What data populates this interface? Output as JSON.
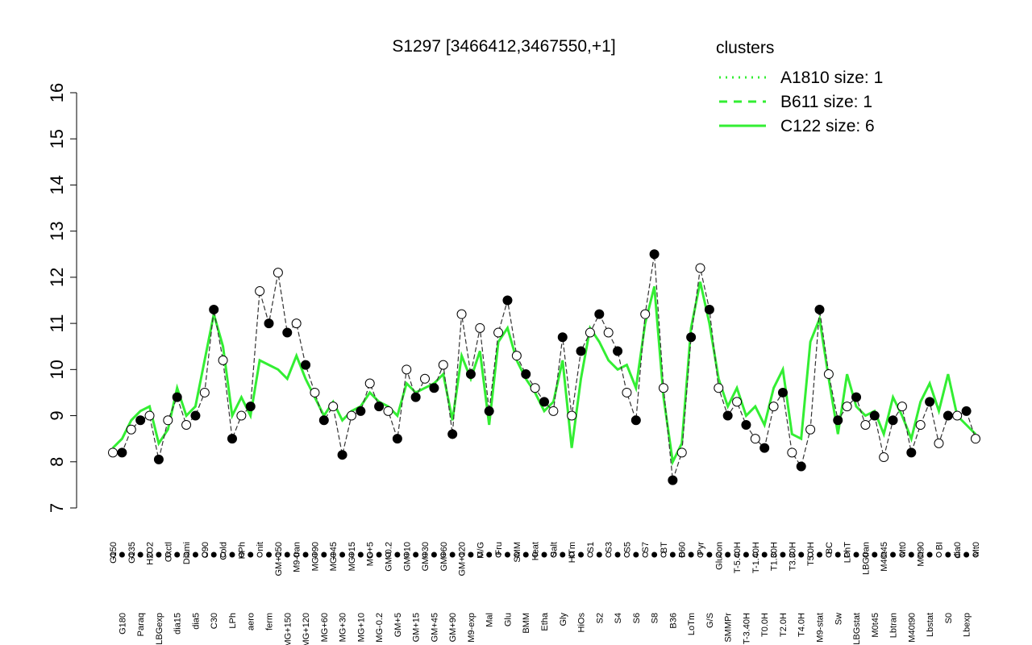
{
  "chart_data": {
    "type": "line",
    "title": "S1297 [3466412,3467550,+1]",
    "legend_title": "clusters",
    "legend": [
      {
        "name": "A1810 size: 1",
        "dash": "2,6"
      },
      {
        "name": "B611 size: 1",
        "dash": "10,8"
      },
      {
        "name": "C122 size: 6",
        "dash": "none"
      }
    ],
    "line_color": "#33ee33",
    "point_color": "#000000",
    "ylim": [
      7,
      16
    ],
    "yticks": [
      7,
      8,
      9,
      10,
      11,
      12,
      13,
      14,
      15,
      16
    ],
    "categories": [
      "G150",
      "G180",
      "G135",
      "Paraq",
      "H2O2",
      "LBGexp",
      "Oxctl",
      "dia15",
      "Diami",
      "dia5",
      "C90",
      "C30",
      "Cold",
      "LPh",
      "HPh",
      "aero",
      "nit",
      "ferm",
      "GM+150",
      "MG+150",
      "M9-tran",
      "MG+120",
      "MG+90",
      "MG+60",
      "MG+45",
      "MG+30",
      "MG+15",
      "MG+10",
      "MG+5",
      "MG-0.2",
      "GM-0.2",
      "GM+5",
      "GM+10",
      "GM+15",
      "GM+30",
      "GM+45",
      "GM+60",
      "GM+90",
      "GM+120",
      "M9-exp",
      "M/G",
      "Mal",
      "Fru",
      "Glu",
      "SMM",
      "BMM",
      "Heat",
      "Etha",
      "Salt",
      "Gly",
      "HiTm",
      "HiOs",
      "S1",
      "S2",
      "S3",
      "S4",
      "S5",
      "S6",
      "S7",
      "S8",
      "BT",
      "B36",
      "B60",
      "LoTm",
      "Pyr",
      "G/S",
      "Glucon",
      "SMMPr",
      "T-5.40H",
      "T-3.40H",
      "T-1.40H",
      "T0.0H",
      "T1.30H",
      "T2.0H",
      "T3.30H",
      "T4.0H",
      "T5.0H",
      "M9-stat",
      "BC",
      "Sw",
      "LPhT",
      "LBGstat",
      "LBGtran",
      "M0t45",
      "M40t45",
      "Lbtran",
      "Mt0",
      "M40t90",
      "M0t90",
      "Lbstat",
      "BI",
      "S0",
      "dia0",
      "Lbexp",
      "Mt0"
    ],
    "values": [
      8.2,
      8.2,
      8.7,
      8.9,
      9.0,
      8.05,
      8.9,
      9.4,
      8.8,
      9.0,
      9.5,
      11.3,
      10.2,
      8.5,
      9.0,
      9.2,
      11.7,
      11.0,
      12.1,
      10.8,
      11.0,
      10.1,
      9.5,
      8.9,
      9.2,
      8.15,
      9.0,
      9.1,
      9.7,
      9.2,
      9.1,
      8.5,
      10.0,
      9.4,
      9.8,
      9.6,
      10.1,
      8.6,
      11.2,
      9.9,
      10.9,
      9.1,
      10.8,
      11.5,
      10.3,
      9.9,
      9.6,
      9.3,
      9.1,
      10.7,
      9.0,
      10.4,
      10.8,
      11.2,
      10.8,
      10.4,
      9.5,
      8.9,
      11.2,
      12.5,
      9.6,
      7.6,
      8.2,
      10.7,
      12.2,
      11.3,
      9.6,
      9.0,
      9.3,
      8.8,
      8.5,
      8.3,
      9.2,
      9.5,
      8.2,
      7.9,
      8.7,
      11.3,
      9.9,
      8.9,
      9.2,
      9.4,
      8.8,
      9.0,
      8.1,
      8.9,
      9.2,
      8.2,
      8.8,
      9.3,
      8.4,
      9.0,
      9.0,
      9.1,
      8.5
    ],
    "line_values": [
      8.3,
      8.5,
      8.9,
      9.1,
      9.2,
      8.4,
      8.7,
      9.6,
      9.0,
      9.2,
      10.2,
      11.2,
      10.5,
      9.0,
      9.4,
      9.0,
      10.2,
      10.1,
      10.0,
      9.8,
      10.3,
      9.8,
      9.4,
      9.0,
      9.3,
      8.9,
      9.1,
      9.2,
      9.5,
      9.3,
      9.2,
      9.0,
      9.7,
      9.5,
      9.6,
      9.7,
      9.9,
      8.9,
      10.3,
      9.8,
      10.4,
      8.8,
      10.6,
      10.9,
      10.2,
      9.8,
      9.5,
      9.1,
      9.3,
      10.2,
      8.3,
      9.8,
      10.9,
      10.6,
      10.2,
      10.0,
      10.1,
      9.6,
      11.0,
      11.8,
      9.4,
      8.0,
      8.4,
      10.9,
      11.9,
      11.0,
      9.8,
      9.2,
      9.6,
      9.0,
      9.2,
      8.8,
      9.6,
      10.0,
      8.6,
      8.5,
      10.6,
      11.1,
      9.8,
      8.6,
      9.9,
      9.2,
      9.0,
      9.1,
      8.6,
      9.4,
      9.0,
      8.5,
      9.3,
      9.7,
      9.1,
      9.9,
      9.0,
      8.8,
      8.6
    ]
  }
}
